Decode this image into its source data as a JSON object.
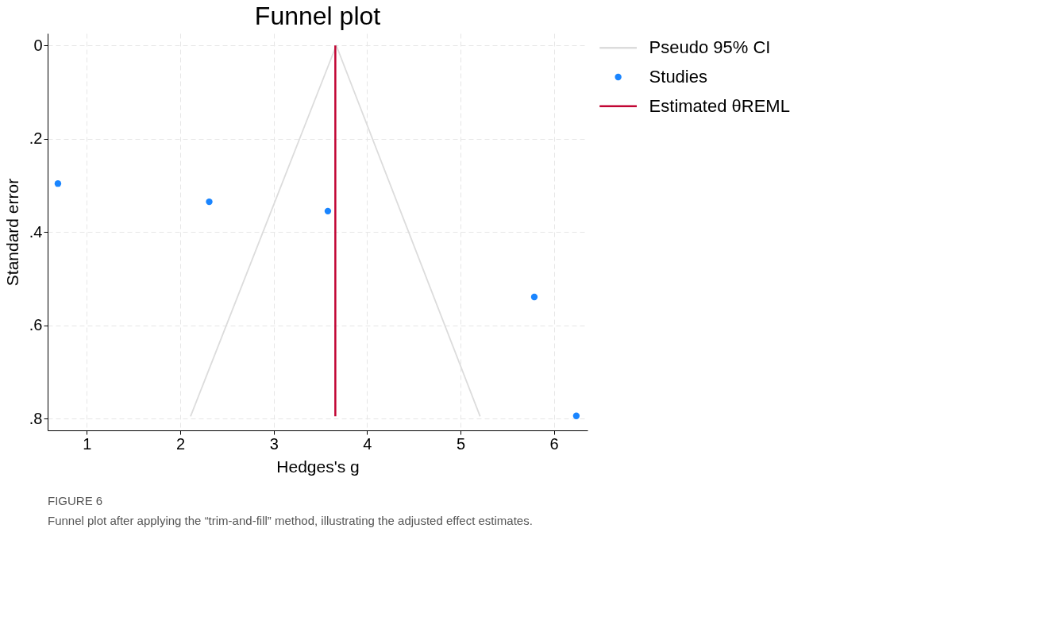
{
  "chart_data": {
    "type": "scatter",
    "title": "Funnel plot",
    "xlabel": "Hedges's g",
    "ylabel": "Standard error",
    "xlim": [
      0.58,
      6.36
    ],
    "xticks": [
      1,
      2,
      3,
      4,
      5,
      6
    ],
    "ylim": [
      0.825,
      -0.026
    ],
    "yticks": [
      {
        "value": 0,
        "label": "0"
      },
      {
        "value": 0.2,
        "label": ".2"
      },
      {
        "value": 0.4,
        "label": ".4"
      },
      {
        "value": 0.6,
        "label": ".6"
      },
      {
        "value": 0.8,
        "label": ".8"
      }
    ],
    "grid": true,
    "legend": "right",
    "series": [
      {
        "name": "Pseudo 95% CI",
        "type": "line",
        "color": "#dcdcdc",
        "x": [
          2.11,
          3.67,
          5.21
        ],
        "values": [
          0.795,
          0,
          0.795
        ]
      },
      {
        "name": "Studies",
        "marker": "circle",
        "color": "#1a85ff",
        "x": [
          0.69,
          2.31,
          3.58,
          5.79,
          6.24
        ],
        "values": [
          0.296,
          0.335,
          0.355,
          0.539,
          0.794
        ]
      },
      {
        "name": "Estimated θREML",
        "type": "line",
        "color": "#c10534",
        "x": [
          3.66,
          3.66
        ],
        "values": [
          0,
          0.795
        ]
      }
    ],
    "annotations": [
      "FIGURE 6",
      "Funnel plot after applying the “trim-and-fill” method, illustrating the adjusted effect estimates."
    ]
  }
}
